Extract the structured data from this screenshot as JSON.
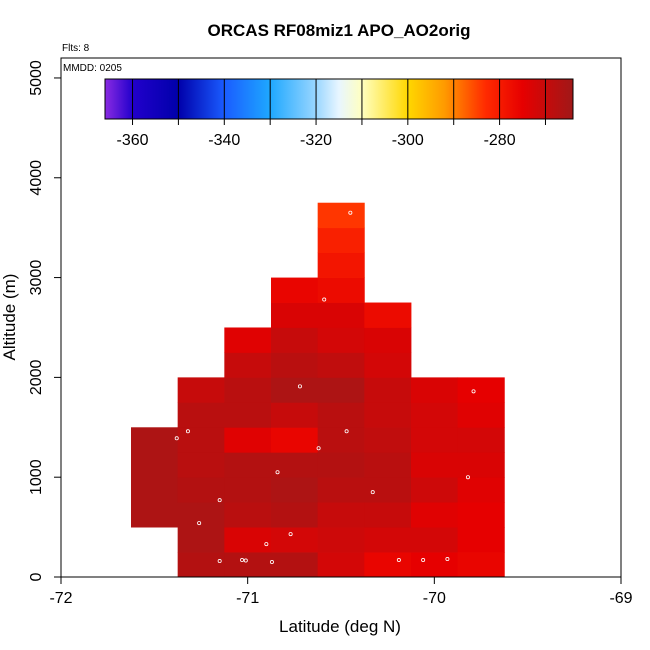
{
  "chart_data": {
    "type": "heatmap",
    "title": "ORCAS RF08miz1 APO_AO2orig",
    "annotations": {
      "flights": "Flts: 8",
      "mmdd": "MMDD: 0205"
    },
    "xlabel": "Latitude (deg N)",
    "ylabel": "Altitude (m)",
    "xlim": [
      -72,
      -69
    ],
    "ylim": [
      0,
      5200
    ],
    "x_ticks": [
      -72,
      -71,
      -70,
      -69
    ],
    "x_tick_labels": [
      "-72",
      "-71",
      "-70",
      "-69"
    ],
    "y_ticks": [
      0,
      1000,
      2000,
      3000,
      4000,
      5000
    ],
    "y_tick_labels": [
      "0",
      "1000",
      "2000",
      "3000",
      "4000",
      "5000"
    ],
    "colorbar": {
      "range": [
        -366,
        -264
      ],
      "ticks": [
        -360,
        -340,
        -320,
        -300,
        -280
      ],
      "tick_labels": [
        "-360",
        "-340",
        "-320",
        "-300",
        "-280"
      ],
      "dividers": [
        -360,
        -350,
        -340,
        -330,
        -320,
        -310,
        -300,
        -290,
        -280,
        -270
      ],
      "stops": [
        {
          "v": -366,
          "c": "#8a2be2"
        },
        {
          "v": -360,
          "c": "#2200cc"
        },
        {
          "v": -350,
          "c": "#0000aa"
        },
        {
          "v": -340,
          "c": "#1a5cff"
        },
        {
          "v": -330,
          "c": "#1ea8ff"
        },
        {
          "v": -320,
          "c": "#9ad6ff"
        },
        {
          "v": -315,
          "c": "#e8f6ff"
        },
        {
          "v": -310,
          "c": "#ffffc0"
        },
        {
          "v": -300,
          "c": "#ffd700"
        },
        {
          "v": -292,
          "c": "#ff9a00"
        },
        {
          "v": -283,
          "c": "#ff2a00"
        },
        {
          "v": -275,
          "c": "#e60000"
        },
        {
          "v": -264,
          "c": "#a01818"
        }
      ]
    },
    "bin_width": 0.25,
    "bin_height": 250,
    "cells": [
      {
        "lon": -71.5,
        "alt": 500,
        "v": -266
      },
      {
        "lon": -71.5,
        "alt": 750,
        "v": -266
      },
      {
        "lon": -71.5,
        "alt": 1000,
        "v": -266
      },
      {
        "lon": -71.5,
        "alt": 1250,
        "v": -266
      },
      {
        "lon": -71.25,
        "alt": 0,
        "v": -267
      },
      {
        "lon": -71.25,
        "alt": 250,
        "v": -266
      },
      {
        "lon": -71.25,
        "alt": 500,
        "v": -266
      },
      {
        "lon": -71.25,
        "alt": 750,
        "v": -267
      },
      {
        "lon": -71.25,
        "alt": 1000,
        "v": -268
      },
      {
        "lon": -71.25,
        "alt": 1250,
        "v": -268
      },
      {
        "lon": -71.25,
        "alt": 1500,
        "v": -268
      },
      {
        "lon": -71.25,
        "alt": 1750,
        "v": -270
      },
      {
        "lon": -71.0,
        "alt": 0,
        "v": -267
      },
      {
        "lon": -71.0,
        "alt": 250,
        "v": -273
      },
      {
        "lon": -71.0,
        "alt": 500,
        "v": -268
      },
      {
        "lon": -71.0,
        "alt": 750,
        "v": -267
      },
      {
        "lon": -71.0,
        "alt": 1000,
        "v": -267
      },
      {
        "lon": -71.0,
        "alt": 1250,
        "v": -274
      },
      {
        "lon": -71.0,
        "alt": 1500,
        "v": -268
      },
      {
        "lon": -71.0,
        "alt": 1750,
        "v": -268
      },
      {
        "lon": -71.0,
        "alt": 2000,
        "v": -270
      },
      {
        "lon": -71.0,
        "alt": 2250,
        "v": -274
      },
      {
        "lon": -70.75,
        "alt": 0,
        "v": -267
      },
      {
        "lon": -70.75,
        "alt": 250,
        "v": -272
      },
      {
        "lon": -70.75,
        "alt": 500,
        "v": -267
      },
      {
        "lon": -70.75,
        "alt": 750,
        "v": -266
      },
      {
        "lon": -70.75,
        "alt": 1000,
        "v": -267
      },
      {
        "lon": -70.75,
        "alt": 1250,
        "v": -276
      },
      {
        "lon": -70.75,
        "alt": 1500,
        "v": -270
      },
      {
        "lon": -70.75,
        "alt": 1750,
        "v": -266
      },
      {
        "lon": -70.75,
        "alt": 2000,
        "v": -268
      },
      {
        "lon": -70.75,
        "alt": 2250,
        "v": -270
      },
      {
        "lon": -70.75,
        "alt": 2500,
        "v": -273
      },
      {
        "lon": -70.75,
        "alt": 2750,
        "v": -276
      },
      {
        "lon": -70.5,
        "alt": 0,
        "v": -272
      },
      {
        "lon": -70.5,
        "alt": 250,
        "v": -271
      },
      {
        "lon": -70.5,
        "alt": 500,
        "v": -270
      },
      {
        "lon": -70.5,
        "alt": 750,
        "v": -268
      },
      {
        "lon": -70.5,
        "alt": 1000,
        "v": -267
      },
      {
        "lon": -70.5,
        "alt": 1250,
        "v": -268
      },
      {
        "lon": -70.5,
        "alt": 1500,
        "v": -268
      },
      {
        "lon": -70.5,
        "alt": 1750,
        "v": -266
      },
      {
        "lon": -70.5,
        "alt": 2000,
        "v": -269
      },
      {
        "lon": -70.5,
        "alt": 2250,
        "v": -272
      },
      {
        "lon": -70.5,
        "alt": 2500,
        "v": -273
      },
      {
        "lon": -70.5,
        "alt": 2750,
        "v": -277
      },
      {
        "lon": -70.5,
        "alt": 3000,
        "v": -279
      },
      {
        "lon": -70.5,
        "alt": 3250,
        "v": -281
      },
      {
        "lon": -70.5,
        "alt": 3500,
        "v": -284
      },
      {
        "lon": -70.25,
        "alt": 0,
        "v": -276
      },
      {
        "lon": -70.25,
        "alt": 250,
        "v": -272
      },
      {
        "lon": -70.25,
        "alt": 500,
        "v": -270
      },
      {
        "lon": -70.25,
        "alt": 750,
        "v": -268
      },
      {
        "lon": -70.25,
        "alt": 1000,
        "v": -268
      },
      {
        "lon": -70.25,
        "alt": 1250,
        "v": -269
      },
      {
        "lon": -70.25,
        "alt": 1500,
        "v": -270
      },
      {
        "lon": -70.25,
        "alt": 1750,
        "v": -270
      },
      {
        "lon": -70.25,
        "alt": 2000,
        "v": -272
      },
      {
        "lon": -70.25,
        "alt": 2250,
        "v": -273
      },
      {
        "lon": -70.25,
        "alt": 2500,
        "v": -277
      },
      {
        "lon": -70.0,
        "alt": 0,
        "v": -275
      },
      {
        "lon": -70.0,
        "alt": 250,
        "v": -272
      },
      {
        "lon": -70.0,
        "alt": 500,
        "v": -274
      },
      {
        "lon": -70.0,
        "alt": 750,
        "v": -271
      },
      {
        "lon": -70.0,
        "alt": 1000,
        "v": -273
      },
      {
        "lon": -70.0,
        "alt": 1250,
        "v": -272
      },
      {
        "lon": -70.0,
        "alt": 1500,
        "v": -272
      },
      {
        "lon": -70.0,
        "alt": 1750,
        "v": -273
      },
      {
        "lon": -69.75,
        "alt": 0,
        "v": -276
      },
      {
        "lon": -69.75,
        "alt": 250,
        "v": -275
      },
      {
        "lon": -69.75,
        "alt": 500,
        "v": -275
      },
      {
        "lon": -69.75,
        "alt": 750,
        "v": -274
      },
      {
        "lon": -69.75,
        "alt": 1000,
        "v": -273
      },
      {
        "lon": -69.75,
        "alt": 1250,
        "v": -272
      },
      {
        "lon": -69.75,
        "alt": 1500,
        "v": -274
      },
      {
        "lon": -69.75,
        "alt": 1750,
        "v": -275
      }
    ],
    "sample_points": [
      {
        "lon": -71.38,
        "alt": 1390
      },
      {
        "lon": -71.32,
        "alt": 1460
      },
      {
        "lon": -71.26,
        "alt": 540
      },
      {
        "lon": -71.15,
        "alt": 770
      },
      {
        "lon": -71.15,
        "alt": 160
      },
      {
        "lon": -71.03,
        "alt": 170
      },
      {
        "lon": -71.01,
        "alt": 165
      },
      {
        "lon": -70.9,
        "alt": 330
      },
      {
        "lon": -70.87,
        "alt": 150
      },
      {
        "lon": -70.84,
        "alt": 1050
      },
      {
        "lon": -70.77,
        "alt": 430
      },
      {
        "lon": -70.72,
        "alt": 1910
      },
      {
        "lon": -70.62,
        "alt": 1290
      },
      {
        "lon": -70.59,
        "alt": 2780
      },
      {
        "lon": -70.47,
        "alt": 1460
      },
      {
        "lon": -70.45,
        "alt": 3650
      },
      {
        "lon": -70.33,
        "alt": 850
      },
      {
        "lon": -70.19,
        "alt": 170
      },
      {
        "lon": -70.06,
        "alt": 170
      },
      {
        "lon": -69.93,
        "alt": 180
      },
      {
        "lon": -69.82,
        "alt": 1000
      },
      {
        "lon": -69.79,
        "alt": 1860
      }
    ]
  }
}
